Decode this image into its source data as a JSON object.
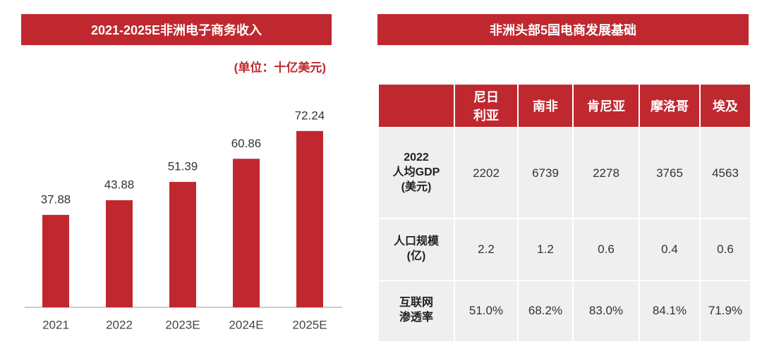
{
  "chart_data": {
    "type": "bar",
    "title": "2021-2025E非洲电子商务收入",
    "subtitle": "(单位：十亿美元)",
    "categories": [
      "2021",
      "2022",
      "2023E",
      "2024E",
      "2025E"
    ],
    "values": [
      37.88,
      43.88,
      51.39,
      60.86,
      72.24
    ],
    "color": "#c0282f",
    "ylim": [
      0,
      80
    ]
  },
  "table": {
    "title": "非洲头部5国电商发展基础",
    "columns": [
      "尼日\n利亚",
      "南非",
      "肯尼亚",
      "摩洛哥",
      "埃及"
    ],
    "rows": [
      {
        "label": "2022\n人均GDP\n(美元)",
        "cells": [
          "2202",
          "6739",
          "2278",
          "3765",
          "4563"
        ]
      },
      {
        "label": "人口规模\n(亿)",
        "cells": [
          "2.2",
          "1.2",
          "0.6",
          "0.4",
          "0.6"
        ]
      },
      {
        "label": "互联网\n渗透率",
        "cells": [
          "51.0%",
          "68.2%",
          "83.0%",
          "84.1%",
          "71.9%"
        ]
      }
    ]
  }
}
